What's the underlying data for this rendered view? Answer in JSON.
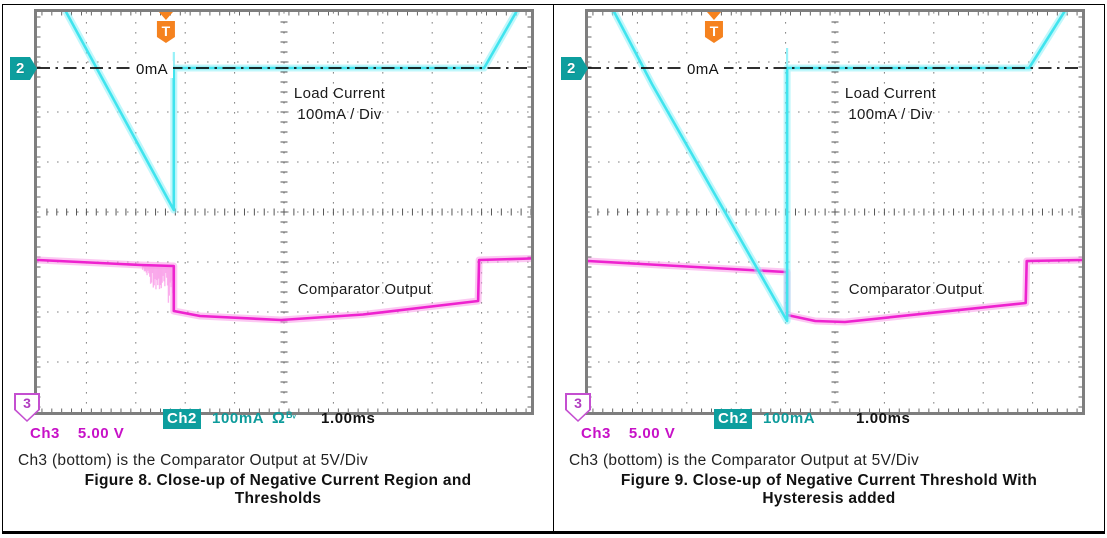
{
  "colors": {
    "cyan_trace": "#40e4ee",
    "cyan_halo": "#8df0f8",
    "magenta_trace": "#ee22cf",
    "magenta_halo": "#fa9ae8",
    "teal_accent": "#0d9b9b",
    "magenta_accent": "#c711c7",
    "trigger_orange": "#f5821f",
    "marker_purple": "#c44fd0",
    "grid_gray": "#808080",
    "frame_gray": "#7e7e7e",
    "zero_line_black": "#111111"
  },
  "panels": [
    {
      "scope": {
        "trigger_icon_label": "T",
        "ch2_marker_label": "2",
        "ch3_marker_label": "3",
        "zero_label": "0mA",
        "ch2_annotation_line1": "Load Current",
        "ch2_annotation_line2": "100mA / Div",
        "ch3_annotation": "Comparator Output"
      },
      "readout": {
        "ch2_label": "Ch2",
        "ch2_scale": "100mA",
        "ch2_coupling": "Ω",
        "ch2_bandwidth": "Bᵥ",
        "timebase": "1.00ms",
        "ch3_label": "Ch3",
        "ch3_scale": "5.00 V"
      },
      "caption_note": "Ch3 (bottom) is the Comparator Output at 5V/Div",
      "figure_title_line1": "Figure 8. Close-up of Negative Current Region and",
      "figure_title_line2": "Thresholds"
    },
    {
      "scope": {
        "trigger_icon_label": "T",
        "ch2_marker_label": "2",
        "ch3_marker_label": "3",
        "zero_label": "0mA",
        "ch2_annotation_line1": "Load Current",
        "ch2_annotation_line2": "100mA / Div",
        "ch3_annotation": "Comparator Output"
      },
      "readout": {
        "ch2_label": "Ch2",
        "ch2_scale": "100mA",
        "ch2_coupling": "",
        "ch2_bandwidth": "",
        "timebase": "1.00ms",
        "ch3_label": "Ch3",
        "ch3_scale": "5.00 V"
      },
      "caption_note": "Ch3 (bottom) is the Comparator Output at 5V/Div",
      "figure_title_line1": "Figure 9. Close-up of Negative Current Threshold With",
      "figure_title_line2": "Hysteresis added"
    }
  ],
  "chart_data": [
    {
      "type": "line",
      "title": "Figure 8. Close-up of Negative Current Region and Thresholds",
      "x_divisions": 10,
      "y_divisions": 8,
      "timebase_per_div": "1.00ms",
      "trigger_x_div": 2.61,
      "zero_ref_y_div": 1.12,
      "grid": "dotted 10x8 oscilloscope graticule with center tick axes",
      "annotations": [
        "0mA",
        "Load Current 100mA / Div",
        "Comparator Output"
      ],
      "series": [
        {
          "name": "Ch2 Load Current",
          "units_per_div": "100mA",
          "color_key": "cyan",
          "points_div": [
            [
              0.59,
              0
            ],
            [
              2.77,
              3.96
            ],
            [
              2.77,
              1.12
            ],
            [
              9.05,
              1.12
            ],
            [
              9.7,
              0
            ]
          ],
          "retrace": {
            "x": 2.77,
            "y0": 0.8,
            "y1": 3.96
          }
        },
        {
          "name": "Ch3 Comparator Output",
          "units_per_div": "5 V",
          "color_key": "magenta",
          "points_div": [
            [
              0.02,
              4.96
            ],
            [
              2.1,
              5.06
            ],
            [
              2.77,
              5.08
            ],
            [
              2.77,
              5.98
            ],
            [
              3.3,
              6.08
            ],
            [
              4.94,
              6.16
            ],
            [
              6.6,
              6.05
            ],
            [
              8.93,
              5.78
            ],
            [
              8.95,
              4.96
            ],
            [
              9.99,
              4.93
            ]
          ],
          "noise_region": {
            "x0": 2.12,
            "x1": 2.77,
            "y_top": 5.08,
            "y_bottom": 5.92
          }
        }
      ]
    },
    {
      "type": "line",
      "title": "Figure 9. Close-up of Negative Current Threshold With Hysteresis added",
      "x_divisions": 10,
      "y_divisions": 8,
      "timebase_per_div": "1.00ms",
      "trigger_x_div": 2.55,
      "zero_ref_y_div": 1.12,
      "grid": "dotted 10x8 oscilloscope graticule with center tick axes",
      "annotations": [
        "0mA",
        "Load Current 100mA / Div",
        "Comparator Output"
      ],
      "series": [
        {
          "name": "Ch2 Load Current",
          "units_per_div": "100mA",
          "color_key": "cyan",
          "points_div": [
            [
              0.53,
              0
            ],
            [
              1.3,
              1.45
            ],
            [
              4.03,
              6.18
            ],
            [
              4.03,
              1.12
            ],
            [
              8.93,
              1.12
            ],
            [
              9.64,
              0
            ]
          ],
          "retrace": {
            "x": 4.03,
            "y0": 0.72,
            "y1": 6.18
          }
        },
        {
          "name": "Ch3 Comparator Output",
          "units_per_div": "5 V",
          "color_key": "magenta",
          "points_div": [
            [
              0,
              4.98
            ],
            [
              4.0,
              5.2
            ],
            [
              4.03,
              5.2
            ],
            [
              4.03,
              6.06
            ],
            [
              4.6,
              6.18
            ],
            [
              5.2,
              6.2
            ],
            [
              8.86,
              5.82
            ],
            [
              8.88,
              4.98
            ],
            [
              10,
              4.96
            ]
          ]
        }
      ]
    }
  ]
}
